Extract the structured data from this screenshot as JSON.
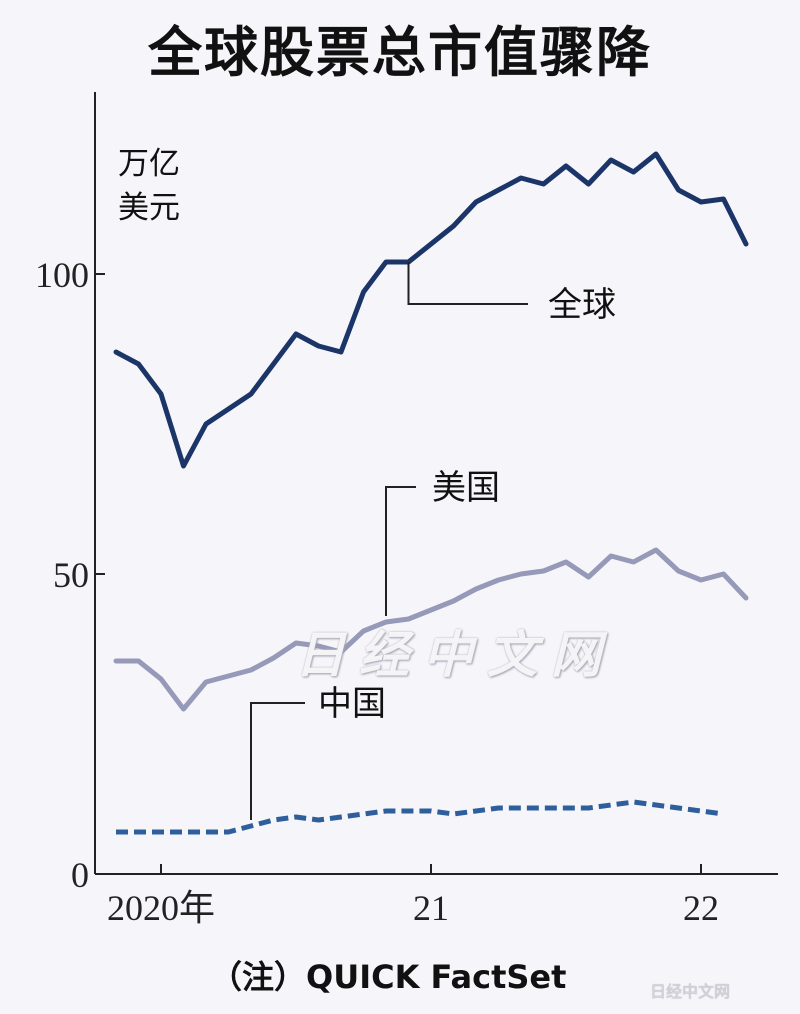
{
  "chart_data": {
    "type": "line",
    "title": "全球股票总市值骤降",
    "ylabel": [
      "万亿",
      "美元"
    ],
    "ylim": [
      0,
      125
    ],
    "yticks": [
      0,
      50,
      100
    ],
    "xticks": [
      {
        "x": "2020-01",
        "label": "2020年"
      },
      {
        "x": "2021-01",
        "label": "21"
      },
      {
        "x": "2022-01",
        "label": "22"
      }
    ],
    "x": [
      "2019-11",
      "2019-12",
      "2020-01",
      "2020-02",
      "2020-03",
      "2020-04",
      "2020-05",
      "2020-06",
      "2020-07",
      "2020-08",
      "2020-09",
      "2020-10",
      "2020-11",
      "2020-12",
      "2021-01",
      "2021-02",
      "2021-03",
      "2021-04",
      "2021-05",
      "2021-06",
      "2021-07",
      "2021-08",
      "2021-09",
      "2021-10",
      "2021-11",
      "2021-12",
      "2022-01",
      "2022-02",
      "2022-03",
      "2022-04"
    ],
    "series": [
      {
        "name": "全球",
        "style": "solid",
        "color": "#1b3568",
        "values": [
          87,
          85,
          80,
          68,
          75,
          77.5,
          80,
          85,
          90,
          88,
          87,
          97,
          102,
          102,
          105,
          108,
          112,
          114,
          116,
          115,
          118,
          115,
          119,
          117,
          120,
          114,
          112,
          112.5,
          105,
          null
        ]
      },
      {
        "name": "美国",
        "style": "solid",
        "color": "#9699b8",
        "values": [
          35.5,
          35.5,
          32.5,
          27.5,
          32,
          33,
          34,
          36,
          38.5,
          38,
          37,
          40.5,
          42,
          42.5,
          44,
          45.5,
          47.5,
          49,
          50,
          50.5,
          52,
          49.5,
          53,
          52,
          54,
          50.5,
          49,
          50,
          46,
          null
        ]
      },
      {
        "name": "中国",
        "style": "dashed",
        "color": "#2e5f9c",
        "values": [
          7,
          7,
          7,
          7,
          7,
          7,
          8,
          9,
          9.5,
          9,
          9.5,
          10,
          10.5,
          10.5,
          10.5,
          10,
          10.5,
          11,
          11,
          11,
          11,
          11,
          11.5,
          12,
          11.5,
          11,
          10.5,
          10,
          null,
          null
        ]
      }
    ],
    "annotations": [
      {
        "series": "全球",
        "label": "全球"
      },
      {
        "series": "美国",
        "label": "美国"
      },
      {
        "series": "中国",
        "label": "中国"
      }
    ],
    "note": "（注）QUICK FactSet",
    "grid": false,
    "legend": "none"
  },
  "watermark": "日经中文网",
  "corner_mark": "日经中文网"
}
